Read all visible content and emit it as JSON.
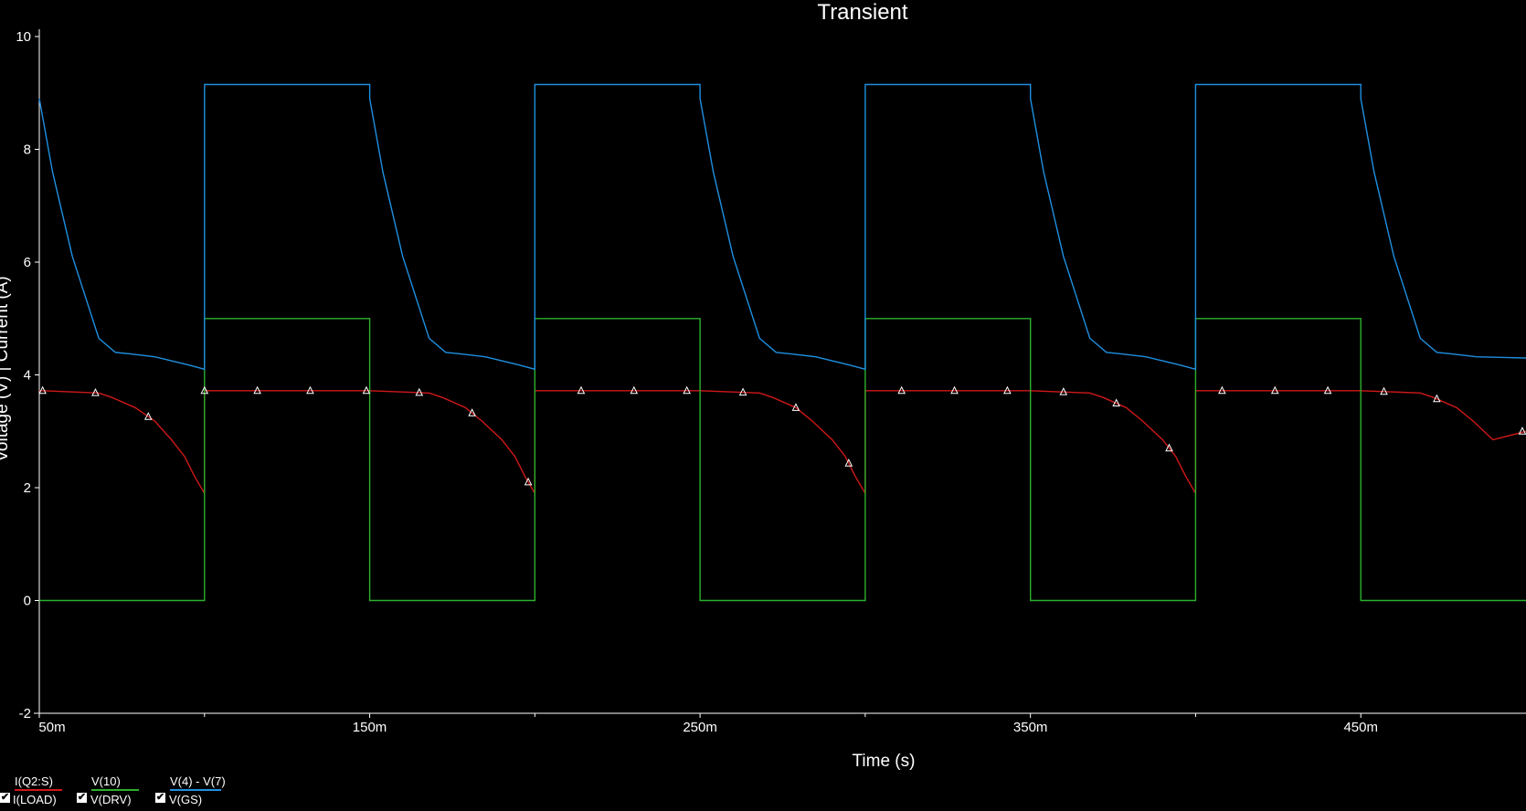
{
  "chart_data": {
    "type": "line",
    "title": "Transient",
    "xlabel": "Time (s)",
    "ylabel": "Voltage (V) | Current (A)",
    "xlim": [
      0.05,
      0.5
    ],
    "ylim": [
      -2,
      10
    ],
    "x_ticks": [
      {
        "v": 0.05,
        "label": "50m"
      },
      {
        "v": 0.15,
        "label": "150m"
      },
      {
        "v": 0.25,
        "label": "250m"
      },
      {
        "v": 0.35,
        "label": "350m"
      },
      {
        "v": 0.45,
        "label": "450m"
      }
    ],
    "y_ticks": [
      {
        "v": -2,
        "label": "-2"
      },
      {
        "v": 0,
        "label": "0"
      },
      {
        "v": 2,
        "label": "2"
      },
      {
        "v": 4,
        "label": "4"
      },
      {
        "v": 6,
        "label": "6"
      },
      {
        "v": 8,
        "label": "8"
      },
      {
        "v": 10,
        "label": "10"
      }
    ],
    "x_minor_ticks": [
      0.1,
      0.2,
      0.3,
      0.4
    ],
    "series": [
      {
        "name": "I(Q2:S)",
        "alias": "I(LOAD)",
        "color": "#d01818",
        "markers": true,
        "x": [
          0.05,
          0.051,
          0.068,
          0.072,
          0.079,
          0.085,
          0.09,
          0.094,
          0.097,
          0.1,
          0.1,
          0.15,
          0.168,
          0.172,
          0.179,
          0.184,
          0.19,
          0.194,
          0.197,
          0.2,
          0.2,
          0.25,
          0.268,
          0.272,
          0.279,
          0.284,
          0.29,
          0.294,
          0.297,
          0.3,
          0.3,
          0.35,
          0.368,
          0.372,
          0.379,
          0.384,
          0.39,
          0.394,
          0.397,
          0.4,
          0.4,
          0.45,
          0.468,
          0.472,
          0.479,
          0.484,
          0.49,
          0.5
        ],
        "y": [
          3.72,
          3.72,
          3.68,
          3.6,
          3.42,
          3.18,
          2.85,
          2.55,
          2.2,
          1.9,
          3.72,
          3.72,
          3.68,
          3.6,
          3.42,
          3.18,
          2.85,
          2.55,
          2.2,
          1.9,
          3.72,
          3.72,
          3.68,
          3.6,
          3.42,
          3.18,
          2.85,
          2.55,
          2.2,
          1.9,
          3.72,
          3.72,
          3.68,
          3.6,
          3.42,
          3.18,
          2.85,
          2.55,
          2.2,
          1.9,
          3.72,
          3.72,
          3.68,
          3.6,
          3.42,
          3.18,
          2.85,
          3.0
        ]
      },
      {
        "name": "V(10)",
        "alias": "V(DRV)",
        "color": "#2db02d",
        "markers": false,
        "x": [
          0.05,
          0.1,
          0.1,
          0.15,
          0.15,
          0.2,
          0.2,
          0.25,
          0.25,
          0.3,
          0.3,
          0.35,
          0.35,
          0.4,
          0.4,
          0.45,
          0.45,
          0.5
        ],
        "y": [
          0,
          0,
          5,
          5,
          0,
          0,
          5,
          5,
          0,
          0,
          5,
          5,
          0,
          0,
          5,
          5,
          0,
          0
        ]
      },
      {
        "name": "V(4) - V(7)",
        "alias": "V(GS)",
        "color": "#1f8fe0",
        "markers": false,
        "x": [
          0.05,
          0.054,
          0.06,
          0.068,
          0.073,
          0.078,
          0.085,
          0.09,
          0.095,
          0.1,
          0.1,
          0.15,
          0.15,
          0.154,
          0.16,
          0.168,
          0.173,
          0.178,
          0.185,
          0.19,
          0.195,
          0.2,
          0.2,
          0.25,
          0.25,
          0.254,
          0.26,
          0.268,
          0.273,
          0.278,
          0.285,
          0.29,
          0.295,
          0.3,
          0.3,
          0.35,
          0.35,
          0.354,
          0.36,
          0.368,
          0.373,
          0.378,
          0.385,
          0.39,
          0.395,
          0.4,
          0.4,
          0.45,
          0.45,
          0.454,
          0.46,
          0.468,
          0.473,
          0.478,
          0.485,
          0.5
        ],
        "y": [
          8.9,
          7.6,
          6.1,
          4.65,
          4.4,
          4.37,
          4.32,
          4.25,
          4.18,
          4.1,
          9.15,
          9.15,
          8.9,
          7.6,
          6.1,
          4.65,
          4.4,
          4.37,
          4.32,
          4.25,
          4.18,
          4.1,
          9.15,
          9.15,
          8.9,
          7.6,
          6.1,
          4.65,
          4.4,
          4.37,
          4.32,
          4.25,
          4.18,
          4.1,
          9.15,
          9.15,
          8.9,
          7.6,
          6.1,
          4.65,
          4.4,
          4.37,
          4.32,
          4.25,
          4.18,
          4.1,
          9.15,
          9.15,
          8.9,
          7.6,
          6.1,
          4.65,
          4.4,
          4.37,
          4.32,
          4.3
        ]
      }
    ],
    "marker_x": [
      0.051,
      0.067,
      0.083,
      0.1,
      0.116,
      0.132,
      0.149,
      0.165,
      0.181,
      0.198,
      0.214,
      0.23,
      0.246,
      0.263,
      0.279,
      0.295,
      0.311,
      0.327,
      0.343,
      0.36,
      0.376,
      0.392,
      0.408,
      0.424,
      0.44,
      0.457,
      0.473,
      0.5
    ]
  }
}
